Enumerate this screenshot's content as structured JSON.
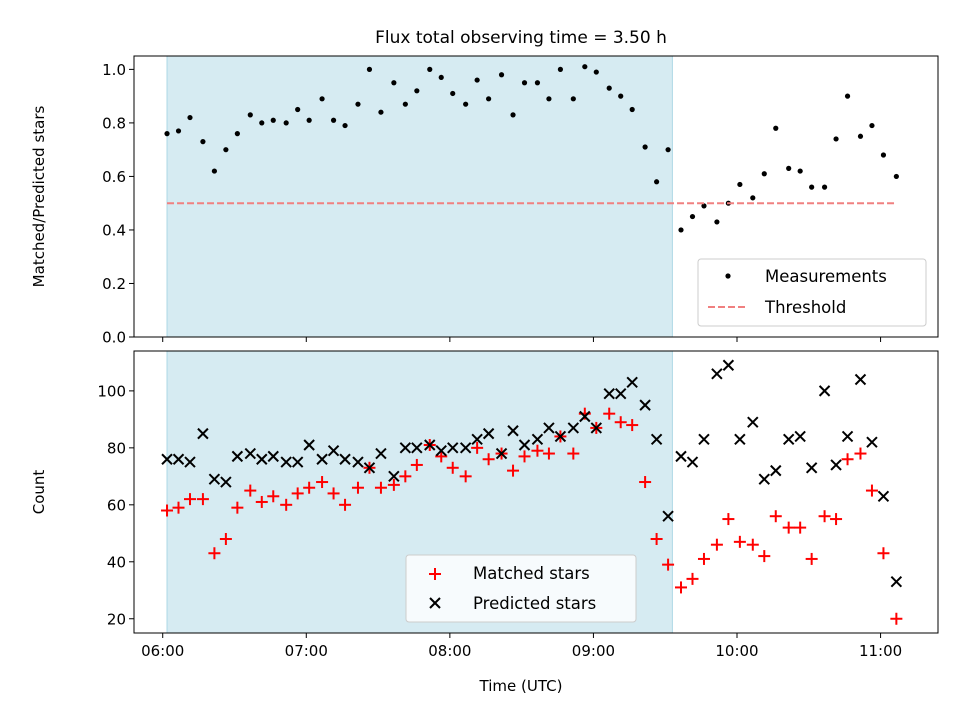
{
  "title": "Flux total observing time = 3.50 h",
  "colors": {
    "shade": "#add8e6",
    "measurement": "#000000",
    "threshold": "#f08080",
    "matched": "#ff0000",
    "predicted": "#000000"
  },
  "chart_data": [
    {
      "type": "scatter",
      "ylabel": "Matched/Predicted stars",
      "xlim": [
        -0.2,
        5.4
      ],
      "ylim": [
        0,
        1.05
      ],
      "yticks": [
        0.0,
        0.2,
        0.4,
        0.6,
        0.8,
        1.0
      ],
      "ytick_labels": [
        "0.0",
        "0.2",
        "0.4",
        "0.6",
        "0.8",
        "1.0"
      ],
      "shaded_x": [
        0.03,
        3.55
      ],
      "legend": "lower right",
      "series": [
        {
          "name": "Measurements",
          "marker": "dot",
          "x": [
            0.03,
            0.11,
            0.19,
            0.28,
            0.36,
            0.44,
            0.52,
            0.61,
            0.69,
            0.77,
            0.86,
            0.94,
            1.02,
            1.11,
            1.19,
            1.27,
            1.36,
            1.44,
            1.52,
            1.61,
            1.69,
            1.77,
            1.86,
            1.94,
            2.02,
            2.11,
            2.19,
            2.27,
            2.36,
            2.44,
            2.52,
            2.61,
            2.69,
            2.77,
            2.86,
            2.94,
            3.02,
            3.11,
            3.19,
            3.27,
            3.36,
            3.44,
            3.52,
            3.61,
            3.69,
            3.77,
            3.86,
            3.94,
            4.02,
            4.11,
            4.19,
            4.27,
            4.36,
            4.44,
            4.52,
            4.61,
            4.69,
            4.77,
            4.86,
            4.94,
            5.02,
            5.11
          ],
          "y": [
            0.76,
            0.77,
            0.82,
            0.73,
            0.62,
            0.7,
            0.76,
            0.83,
            0.8,
            0.81,
            0.8,
            0.85,
            0.81,
            0.89,
            0.81,
            0.79,
            0.87,
            1.0,
            0.84,
            0.95,
            0.87,
            0.92,
            1.0,
            0.97,
            0.91,
            0.87,
            0.96,
            0.89,
            0.98,
            0.83,
            0.95,
            0.95,
            0.89,
            1.0,
            0.89,
            1.01,
            0.99,
            0.93,
            0.9,
            0.85,
            0.71,
            0.58,
            0.7,
            0.4,
            0.45,
            0.49,
            0.43,
            0.5,
            0.57,
            0.52,
            0.61,
            0.78,
            0.63,
            0.62,
            0.56,
            0.56,
            0.74,
            0.9,
            0.75,
            0.79,
            0.68,
            0.6
          ]
        },
        {
          "name": "Threshold",
          "style": "dashed",
          "x": [
            0.03,
            5.11
          ],
          "y": [
            0.5,
            0.5
          ]
        }
      ]
    },
    {
      "type": "scatter",
      "ylabel": "Count",
      "xlabel": "Time (UTC)",
      "xlim": [
        -0.2,
        5.4
      ],
      "ylim": [
        15,
        114
      ],
      "yticks": [
        20,
        40,
        60,
        80,
        100
      ],
      "ytick_labels": [
        "20",
        "40",
        "60",
        "80",
        "100"
      ],
      "xticks": [
        0,
        1,
        2,
        3,
        4,
        5
      ],
      "xtick_labels": [
        "06:00",
        "07:00",
        "08:00",
        "09:00",
        "10:00",
        "11:00"
      ],
      "shaded_x": [
        0.03,
        3.55
      ],
      "legend": "lower center",
      "series": [
        {
          "name": "Matched stars",
          "marker": "plus",
          "x": [
            0.03,
            0.11,
            0.19,
            0.28,
            0.36,
            0.44,
            0.52,
            0.61,
            0.69,
            0.77,
            0.86,
            0.94,
            1.02,
            1.11,
            1.19,
            1.27,
            1.36,
            1.44,
            1.52,
            1.61,
            1.69,
            1.77,
            1.86,
            1.94,
            2.02,
            2.11,
            2.19,
            2.27,
            2.36,
            2.44,
            2.52,
            2.61,
            2.69,
            2.77,
            2.86,
            2.94,
            3.02,
            3.11,
            3.19,
            3.27,
            3.36,
            3.44,
            3.52,
            3.61,
            3.69,
            3.77,
            3.86,
            3.94,
            4.02,
            4.11,
            4.19,
            4.27,
            4.36,
            4.44,
            4.52,
            4.61,
            4.69,
            4.77,
            4.86,
            4.94,
            5.02,
            5.11
          ],
          "y": [
            58,
            59,
            62,
            62,
            43,
            48,
            59,
            65,
            61,
            63,
            60,
            64,
            66,
            68,
            64,
            60,
            66,
            73,
            66,
            67,
            70,
            74,
            81,
            77,
            73,
            70,
            80,
            76,
            78,
            72,
            77,
            79,
            78,
            84,
            78,
            92,
            87,
            92,
            89,
            88,
            68,
            48,
            39,
            31,
            34,
            41,
            46,
            55,
            47,
            46,
            42,
            56,
            52,
            52,
            41,
            56,
            55,
            76,
            78,
            65,
            43,
            20
          ]
        },
        {
          "name": "Predicted stars",
          "marker": "x",
          "x": [
            0.03,
            0.11,
            0.19,
            0.28,
            0.36,
            0.44,
            0.52,
            0.61,
            0.69,
            0.77,
            0.86,
            0.94,
            1.02,
            1.11,
            1.19,
            1.27,
            1.36,
            1.44,
            1.52,
            1.61,
            1.69,
            1.77,
            1.86,
            1.94,
            2.02,
            2.11,
            2.19,
            2.27,
            2.36,
            2.44,
            2.52,
            2.61,
            2.69,
            2.77,
            2.86,
            2.94,
            3.02,
            3.11,
            3.19,
            3.27,
            3.36,
            3.44,
            3.52,
            3.61,
            3.69,
            3.77,
            3.86,
            3.94,
            4.02,
            4.11,
            4.19,
            4.27,
            4.36,
            4.44,
            4.52,
            4.61,
            4.69,
            4.77,
            4.86,
            4.94,
            5.02,
            5.11
          ],
          "y": [
            76,
            76,
            75,
            85,
            69,
            68,
            77,
            78,
            76,
            77,
            75,
            75,
            81,
            76,
            79,
            76,
            75,
            73,
            78,
            70,
            80,
            80,
            81,
            79,
            80,
            80,
            83,
            85,
            78,
            86,
            81,
            83,
            87,
            84,
            87,
            91,
            87,
            99,
            99,
            103,
            95,
            83,
            56,
            77,
            75,
            83,
            106,
            109,
            83,
            89,
            69,
            72,
            83,
            84,
            73,
            100,
            74,
            84,
            104,
            82,
            63,
            33
          ]
        }
      ]
    }
  ]
}
